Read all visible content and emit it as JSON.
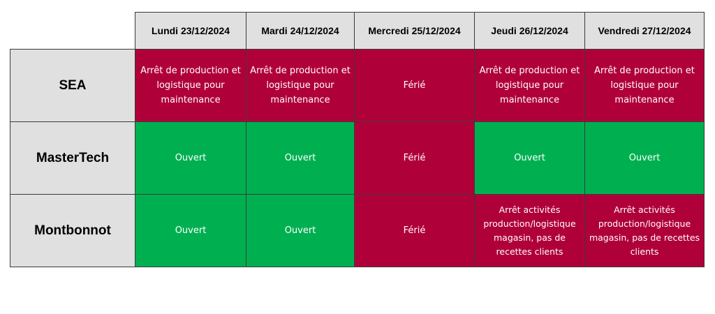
{
  "colors": {
    "open": "#00b050",
    "closed": "#b0003a",
    "header_bg": "#e0e0e0"
  },
  "days": [
    "Lundi 23/12/2024",
    "Mardi 24/12/2024",
    "Mercredi 25/12/2024",
    "Jeudi 26/12/2024",
    "Vendredi 27/12/2024"
  ],
  "rows": [
    {
      "site": "SEA",
      "cells": [
        {
          "text": "Arrêt de production et logistique pour maintenance",
          "status": "closed"
        },
        {
          "text": "Arrêt de production et logistique pour maintenance",
          "status": "closed"
        },
        {
          "text": "Férié",
          "status": "closed"
        },
        {
          "text": "Arrêt de production et logistique pour maintenance",
          "status": "closed"
        },
        {
          "text": "Arrêt de production et logistique pour maintenance",
          "status": "closed"
        }
      ]
    },
    {
      "site": "MasterTech",
      "cells": [
        {
          "text": "Ouvert",
          "status": "open"
        },
        {
          "text": "Ouvert",
          "status": "open"
        },
        {
          "text": "Férié",
          "status": "closed"
        },
        {
          "text": "Ouvert",
          "status": "open"
        },
        {
          "text": "Ouvert",
          "status": "open"
        }
      ]
    },
    {
      "site": "Montbonnot",
      "cells": [
        {
          "text": "Ouvert",
          "status": "open"
        },
        {
          "text": "Ouvert",
          "status": "open"
        },
        {
          "text": "Férié",
          "status": "closed"
        },
        {
          "text": "Arrêt activités production/logistique magasin, pas de recettes clients",
          "status": "closed"
        },
        {
          "text": "Arrêt activités production/logistique magasin, pas de recettes clients",
          "status": "closed"
        }
      ]
    }
  ]
}
